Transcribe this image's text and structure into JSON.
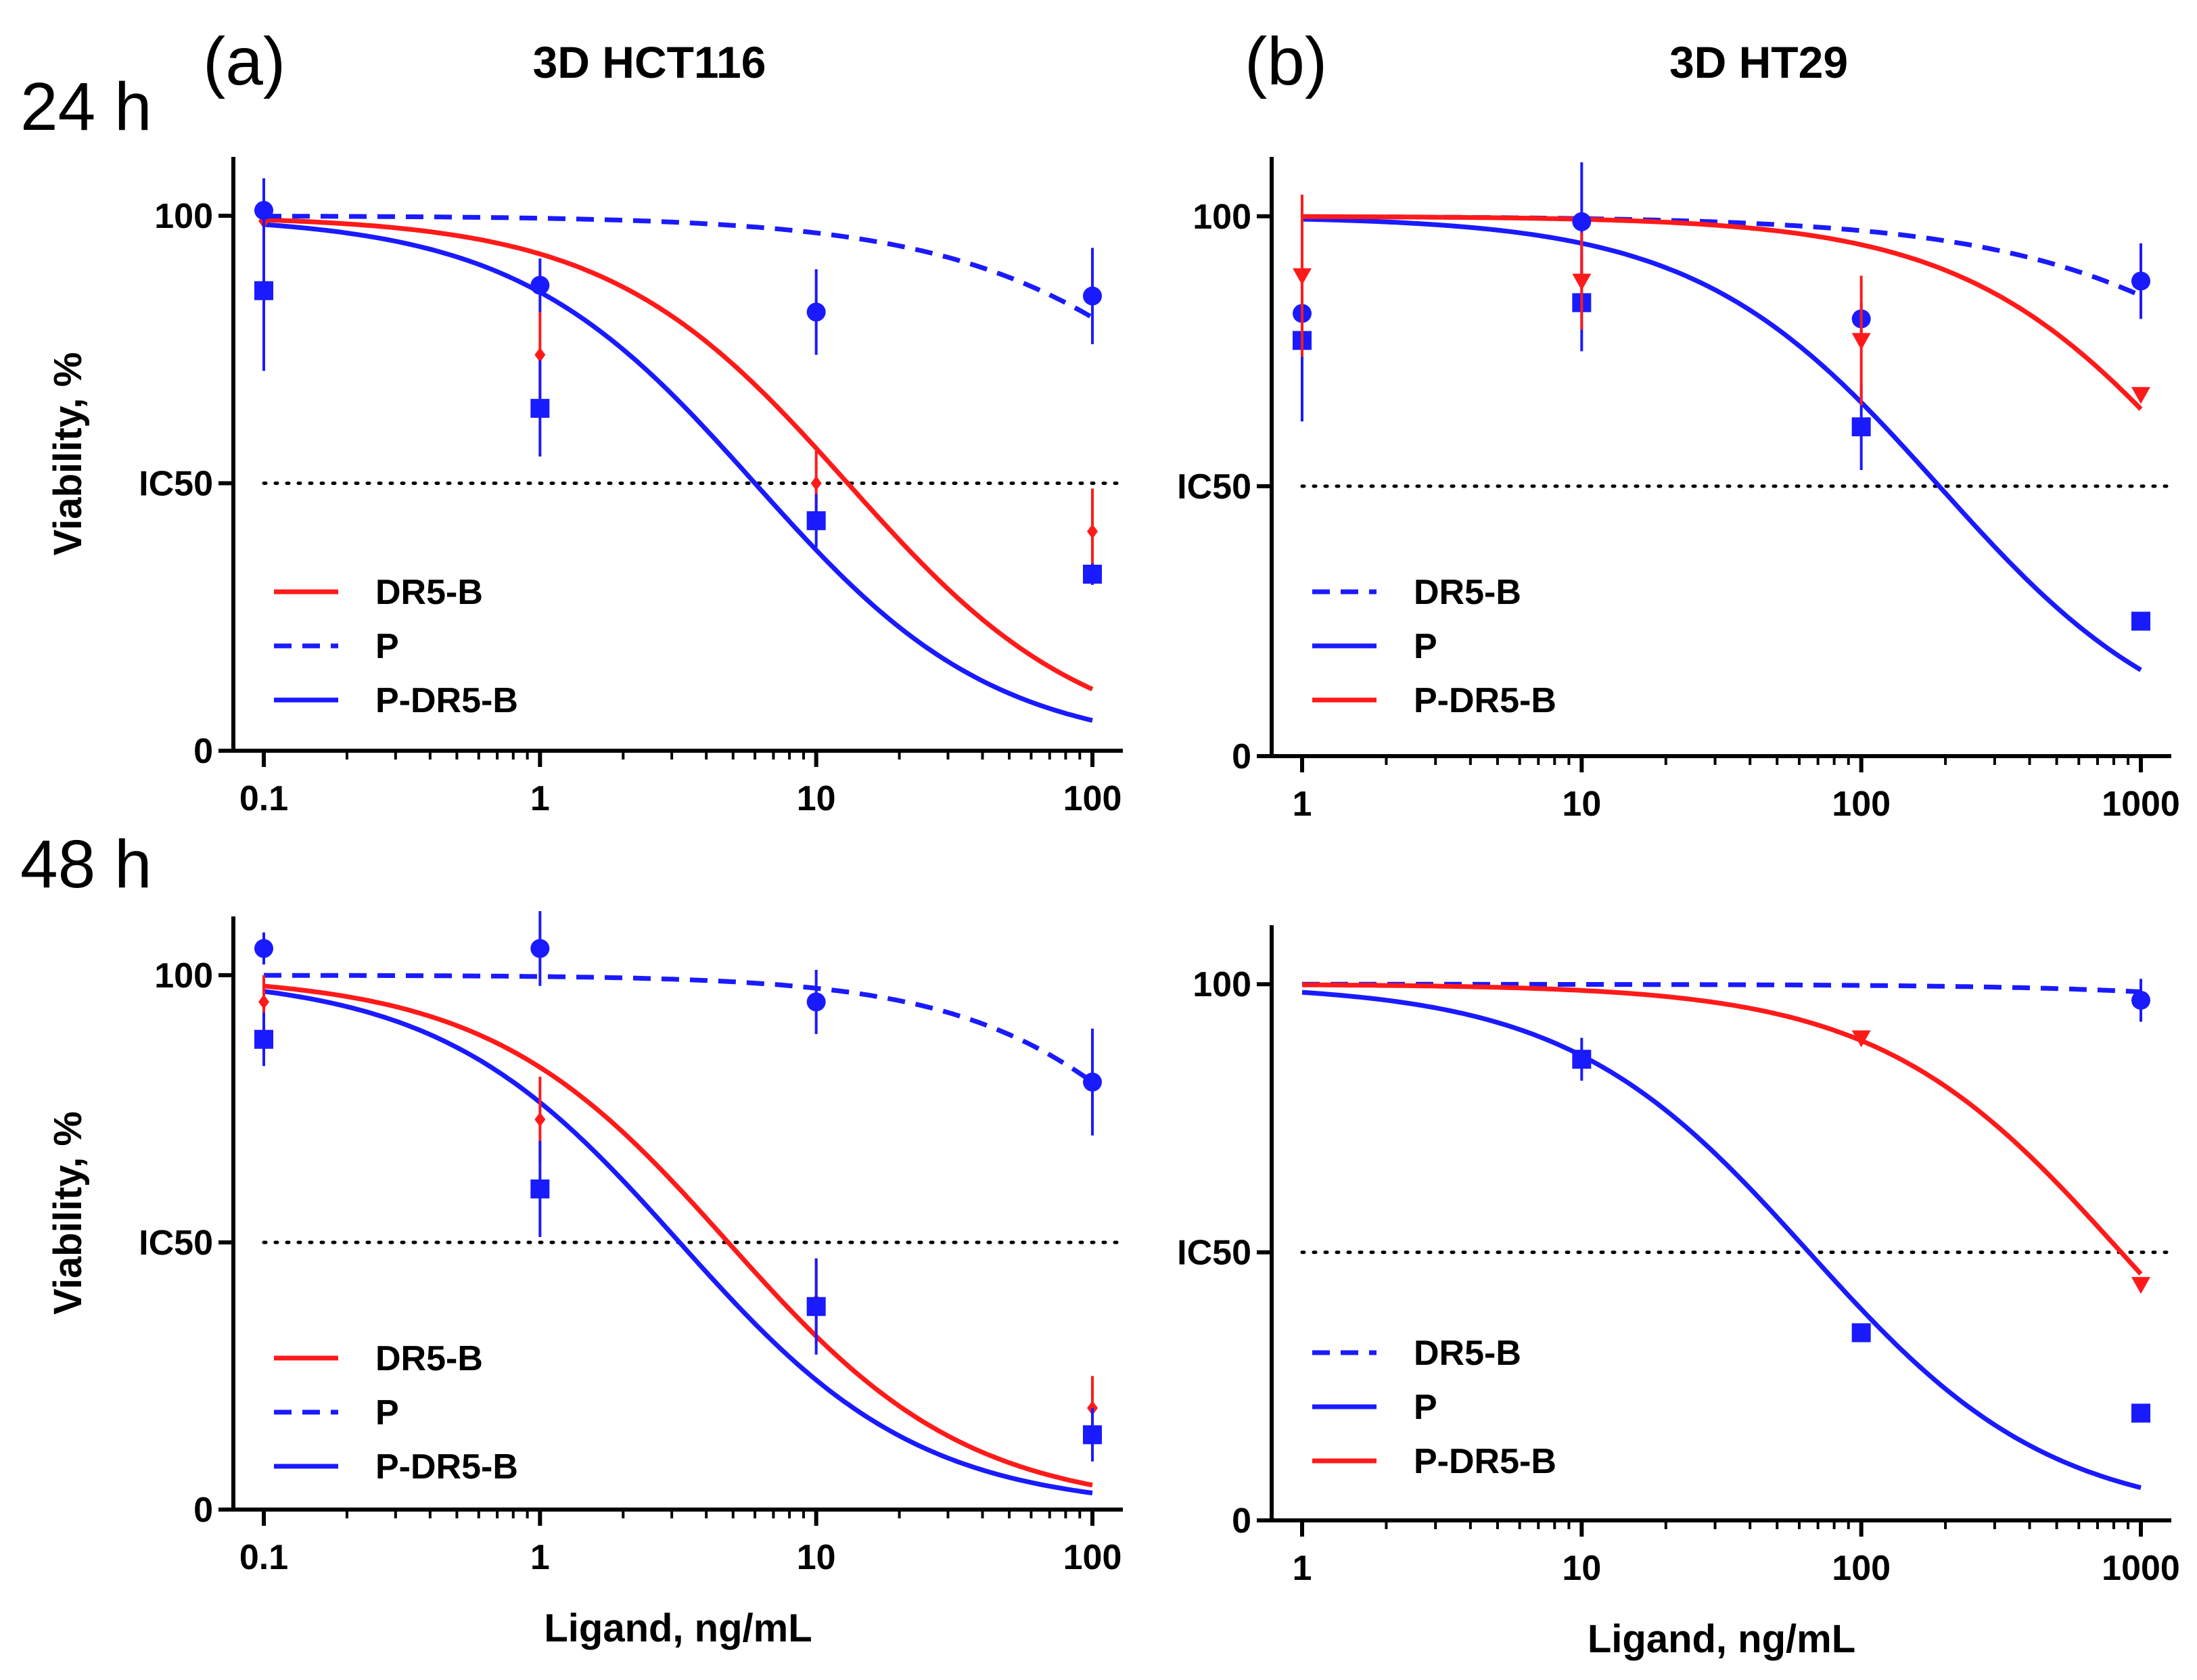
{
  "figure": {
    "row_labels": [
      "24 h",
      "48 h"
    ],
    "panel_letters": [
      "(a)",
      "(b)"
    ],
    "panel_titles": [
      "3D HCT116",
      "3D HT29"
    ]
  },
  "colors": {
    "red": "#ff1a1a",
    "blue": "#1a1aff"
  },
  "chart_data": [
    {
      "id": "hct116-24h",
      "type": "scatter",
      "title": "3D HCT116",
      "xlabel": "",
      "ylabel": "Viability, %",
      "x_scale": "log",
      "xlim": [
        0.1,
        100
      ],
      "ylim": [
        0,
        100
      ],
      "x_ticks": [
        0.1,
        1,
        10,
        100
      ],
      "x_tick_labels": [
        "0.1",
        "1",
        "10",
        "100"
      ],
      "y_ticks": [
        0,
        50,
        100
      ],
      "y_tick_labels": [
        "0",
        "IC50",
        "100"
      ],
      "ic50_line": 50,
      "legend_position": "bottom-left",
      "series": [
        {
          "name": "DR5-B",
          "color": "#ff1a1a",
          "line": "solid",
          "marker": "diamond",
          "x": [
            0.1,
            1,
            10,
            100
          ],
          "y": [
            99,
            74,
            50,
            41
          ],
          "err": [
            4,
            8,
            6,
            8
          ],
          "fit": {
            "top": 100,
            "bottom": 0,
            "ic50": 13,
            "hill": 1.0
          }
        },
        {
          "name": "P",
          "color": "#1a1aff",
          "line": "dashed",
          "marker": "circle",
          "x": [
            0.1,
            1,
            10,
            100
          ],
          "y": [
            101,
            87,
            82,
            85
          ],
          "err": [
            6,
            5,
            8,
            9
          ],
          "fit": {
            "top": 100,
            "bottom": 0,
            "ic50": 550,
            "hill": 0.85
          }
        },
        {
          "name": "P-DR5-B",
          "color": "#1a1aff",
          "line": "solid",
          "marker": "square",
          "x": [
            0.1,
            1,
            10,
            100
          ],
          "y": [
            86,
            64,
            43,
            33
          ],
          "err": [
            15,
            9,
            5,
            2
          ],
          "fit": {
            "top": 100,
            "bottom": 0,
            "ic50": 6,
            "hill": 1.0
          }
        }
      ]
    },
    {
      "id": "ht29-24h",
      "type": "scatter",
      "title": "3D HT29",
      "xlabel": "",
      "ylabel": "",
      "x_scale": "log",
      "xlim": [
        1,
        1000
      ],
      "ylim": [
        0,
        100
      ],
      "x_ticks": [
        1,
        10,
        100,
        1000
      ],
      "x_tick_labels": [
        "1",
        "10",
        "100",
        "1000"
      ],
      "y_ticks": [
        0,
        50,
        100
      ],
      "y_tick_labels": [
        "0",
        "IC50",
        "100"
      ],
      "ic50_line": 50,
      "legend_position": "bottom-left",
      "series": [
        {
          "name": "DR5-B",
          "color": "#1a1aff",
          "line": "dashed",
          "marker": "circle",
          "x": [
            1,
            10,
            100,
            1000
          ],
          "y": [
            82,
            99,
            81,
            88
          ],
          "err": [
            8,
            11,
            3,
            7
          ],
          "fit": {
            "top": 100,
            "bottom": 0,
            "ic50": 9000,
            "hill": 0.8
          }
        },
        {
          "name": "P",
          "color": "#1a1aff",
          "line": "solid",
          "marker": "square",
          "x": [
            1,
            10,
            100,
            1000
          ],
          "y": [
            77,
            84,
            61,
            25
          ],
          "err": [
            15,
            9,
            8,
            1
          ],
          "fit": {
            "top": 100,
            "bottom": 0,
            "ic50": 190,
            "hill": 1.0
          }
        },
        {
          "name": "P-DR5-B",
          "color": "#ff1a1a",
          "line": "solid",
          "marker": "triangle-down",
          "x": [
            1,
            10,
            100,
            1000
          ],
          "y": [
            89,
            88,
            77,
            67
          ],
          "err": [
            15,
            9,
            12,
            1
          ],
          "fit": {
            "top": 100,
            "bottom": 0,
            "ic50": 1800,
            "hill": 1.0
          }
        }
      ]
    },
    {
      "id": "hct116-48h",
      "type": "scatter",
      "title": "",
      "xlabel": "Ligand, ng/mL",
      "ylabel": "Viability, %",
      "x_scale": "log",
      "xlim": [
        0.1,
        100
      ],
      "ylim": [
        0,
        100
      ],
      "x_ticks": [
        0.1,
        1,
        10,
        100
      ],
      "x_tick_labels": [
        "0.1",
        "1",
        "10",
        "100"
      ],
      "y_ticks": [
        0,
        50,
        100
      ],
      "y_tick_labels": [
        "0",
        "IC50",
        "100"
      ],
      "ic50_line": 50,
      "legend_position": "bottom-left",
      "series": [
        {
          "name": "DR5-B",
          "color": "#ff1a1a",
          "line": "solid",
          "marker": "diamond",
          "x": [
            0.1,
            1,
            10,
            100
          ],
          "y": [
            95,
            73,
            39,
            19
          ],
          "err": [
            5,
            8,
            8,
            6
          ],
          "fit": {
            "top": 100,
            "bottom": 0,
            "ic50": 4.8,
            "hill": 1.0
          }
        },
        {
          "name": "P",
          "color": "#1a1aff",
          "line": "dashed",
          "marker": "circle",
          "x": [
            0.1,
            1,
            10,
            100
          ],
          "y": [
            105,
            105,
            95,
            80
          ],
          "err": [
            3,
            7,
            6,
            10
          ],
          "fit": {
            "top": 100,
            "bottom": 0,
            "ic50": 400,
            "hill": 1.0
          }
        },
        {
          "name": "P-DR5-B",
          "color": "#1a1aff",
          "line": "solid",
          "marker": "square",
          "x": [
            0.1,
            1,
            10,
            100
          ],
          "y": [
            88,
            60,
            38,
            14
          ],
          "err": [
            5,
            9,
            9,
            5
          ],
          "fit": {
            "top": 100,
            "bottom": 0,
            "ic50": 3.2,
            "hill": 1.0
          }
        }
      ]
    },
    {
      "id": "ht29-48h",
      "type": "scatter",
      "title": "",
      "xlabel": "Ligand, ng/mL",
      "ylabel": "",
      "x_scale": "log",
      "xlim": [
        1,
        1000
      ],
      "ylim": [
        0,
        100
      ],
      "x_ticks": [
        1,
        10,
        100,
        1000
      ],
      "x_tick_labels": [
        "1",
        "10",
        "100",
        "1000"
      ],
      "y_ticks": [
        0,
        50,
        100
      ],
      "y_tick_labels": [
        "0",
        "IC50",
        "100"
      ],
      "ic50_line": 50,
      "legend_position": "bottom-left",
      "series": [
        {
          "name": "DR5-B",
          "color": "#1a1aff",
          "line": "dashed",
          "marker": "circle",
          "x": [
            1000
          ],
          "y": [
            97
          ],
          "err": [
            4
          ],
          "fit": {
            "top": 100,
            "bottom": 0,
            "ic50": 200000,
            "hill": 0.8
          }
        },
        {
          "name": "P",
          "color": "#1a1aff",
          "line": "solid",
          "marker": "square",
          "x": [
            10,
            100,
            1000
          ],
          "y": [
            86,
            35,
            20
          ],
          "err": [
            4,
            1,
            1
          ],
          "fit": {
            "top": 100,
            "bottom": 0,
            "ic50": 65,
            "hill": 1.0
          }
        },
        {
          "name": "P-DR5-B",
          "color": "#ff1a1a",
          "line": "solid",
          "marker": "triangle-down",
          "x": [
            100,
            1000
          ],
          "y": [
            90,
            44
          ],
          "err": [
            1,
            1
          ],
          "fit": {
            "top": 100,
            "bottom": 0,
            "ic50": 850,
            "hill": 1.0
          }
        }
      ]
    }
  ]
}
